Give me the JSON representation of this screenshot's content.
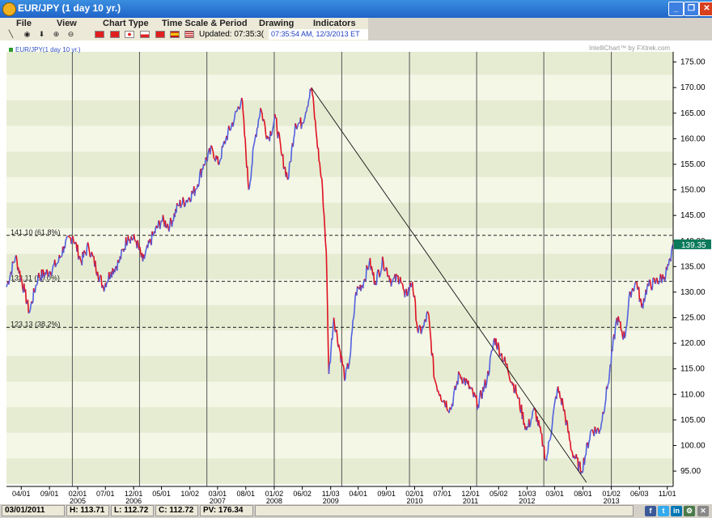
{
  "window": {
    "title": "EUR/JPY (1 day  10 yr.)"
  },
  "menu": [
    "File",
    "View",
    "Chart Type",
    "Time Scale & Period",
    "Drawing",
    "Indicators"
  ],
  "toolbar": {
    "updated_label": "Updated: 07:35:3(",
    "updated_value": "07:35:54 AM, 12/3/2013 ET",
    "tools": [
      "line-tool",
      "crosshair-tool",
      "arrow-down-tool",
      "zoom-in-tool",
      "zoom-out-tool"
    ],
    "flags": [
      "china",
      "hong-kong",
      "japan",
      "poland",
      "turkey",
      "spain",
      "usa"
    ]
  },
  "status": {
    "date": "03/01/2011",
    "high": "H: 113.71",
    "low": "L: 112.72",
    "close": "C: 112.72",
    "pv": "PV: 176.34",
    "share_icons": [
      "facebook-icon",
      "twitter-icon",
      "linkedin-icon",
      "settings-icon",
      "close-icon"
    ]
  },
  "chart_data": {
    "type": "line",
    "title": "EUR/JPY(1 day  10 yr.)",
    "watermark": "IntelliChart™ by FXtrek.com",
    "ylim": [
      92,
      177
    ],
    "y_ticks": [
      95,
      100,
      105,
      110,
      115,
      120,
      125,
      130,
      135,
      140,
      145,
      150,
      155,
      160,
      165,
      170,
      175
    ],
    "y_tick_labels": [
      "95.00",
      "100.00",
      "105.00",
      "110.00",
      "115.00",
      "120.00",
      "125.00",
      "130.00",
      "135.00",
      "140.00",
      "145.00",
      "150.00",
      "155.00",
      "160.00",
      "165.00",
      "170.00",
      "175.00"
    ],
    "xlim": [
      "2004-01-12",
      "2013-12-03"
    ],
    "x_ticks": [
      {
        "date": "2004-04-01",
        "label": "04/01"
      },
      {
        "date": "2004-09-01",
        "label": "09/01"
      },
      {
        "date": "2005-02-01",
        "label": "02/01",
        "year": "2005"
      },
      {
        "date": "2005-07-01",
        "label": "07/01"
      },
      {
        "date": "2005-12-01",
        "label": "12/01",
        "year": "2006"
      },
      {
        "date": "2006-05-01",
        "label": "05/01"
      },
      {
        "date": "2006-10-02",
        "label": "10/02"
      },
      {
        "date": "2007-03-01",
        "label": "03/01",
        "year": "2007"
      },
      {
        "date": "2007-08-01",
        "label": "08/01"
      },
      {
        "date": "2008-01-02",
        "label": "01/02",
        "year": "2008"
      },
      {
        "date": "2008-06-02",
        "label": "06/02"
      },
      {
        "date": "2008-11-03",
        "label": "11/03",
        "year": "2009"
      },
      {
        "date": "2009-04-01",
        "label": "04/01"
      },
      {
        "date": "2009-09-01",
        "label": "09/01"
      },
      {
        "date": "2010-02-01",
        "label": "02/01",
        "year": "2010"
      },
      {
        "date": "2010-07-01",
        "label": "07/01"
      },
      {
        "date": "2010-12-01",
        "label": "12/01",
        "year": "2011"
      },
      {
        "date": "2011-05-02",
        "label": "05/02"
      },
      {
        "date": "2011-10-03",
        "label": "10/03",
        "year": "2012"
      },
      {
        "date": "2012-03-01",
        "label": "03/01"
      },
      {
        "date": "2012-08-01",
        "label": "08/01"
      },
      {
        "date": "2013-01-02",
        "label": "01/02",
        "year": "2013"
      },
      {
        "date": "2013-06-03",
        "label": "06/03"
      },
      {
        "date": "2013-11-01",
        "label": "11/01"
      }
    ],
    "year_dividers": [
      "2005-01-03",
      "2006-01-02",
      "2007-01-02",
      "2008-01-02",
      "2009-01-02",
      "2010-01-04",
      "2011-01-03",
      "2012-01-02",
      "2013-01-02"
    ],
    "fib_levels": [
      {
        "value": 141.1,
        "label": "141.10 (61.8%)"
      },
      {
        "value": 132.11,
        "label": "132.11 (50.0%)"
      },
      {
        "value": 123.13,
        "label": "123.13 (38.2%)"
      }
    ],
    "trendline": [
      {
        "x": "2008-07-23",
        "y": 169.9
      },
      {
        "x": "2012-08-20",
        "y": 92.8
      }
    ],
    "last_price": {
      "value": 139.35,
      "label": "139.35"
    },
    "colors": {
      "up": "#5060e0",
      "down": "#e01020",
      "band_light": "#f4f6e6",
      "band_dark": "#e6ecd2",
      "last_price_bg": "#0a7a5a"
    },
    "series": [
      {
        "x": "2004-01-12",
        "y": 131
      },
      {
        "x": "2004-03-01",
        "y": 137
      },
      {
        "x": "2004-04-20",
        "y": 130
      },
      {
        "x": "2004-05-15",
        "y": 126
      },
      {
        "x": "2004-07-01",
        "y": 133
      },
      {
        "x": "2004-09-01",
        "y": 134
      },
      {
        "x": "2004-10-20",
        "y": 136
      },
      {
        "x": "2004-11-20",
        "y": 139
      },
      {
        "x": "2005-01-05",
        "y": 141
      },
      {
        "x": "2005-02-20",
        "y": 136
      },
      {
        "x": "2005-04-01",
        "y": 139
      },
      {
        "x": "2005-05-20",
        "y": 134
      },
      {
        "x": "2005-06-20",
        "y": 131
      },
      {
        "x": "2005-08-01",
        "y": 134
      },
      {
        "x": "2005-09-15",
        "y": 136
      },
      {
        "x": "2005-11-01",
        "y": 141
      },
      {
        "x": "2005-12-15",
        "y": 140
      },
      {
        "x": "2006-01-20",
        "y": 136
      },
      {
        "x": "2006-03-15",
        "y": 141
      },
      {
        "x": "2006-05-01",
        "y": 144
      },
      {
        "x": "2006-06-15",
        "y": 143
      },
      {
        "x": "2006-08-01",
        "y": 147
      },
      {
        "x": "2006-09-15",
        "y": 148
      },
      {
        "x": "2006-11-01",
        "y": 150
      },
      {
        "x": "2006-12-15",
        "y": 155
      },
      {
        "x": "2007-02-01",
        "y": 158
      },
      {
        "x": "2007-03-05",
        "y": 155
      },
      {
        "x": "2007-04-15",
        "y": 160
      },
      {
        "x": "2007-06-01",
        "y": 164
      },
      {
        "x": "2007-07-10",
        "y": 168
      },
      {
        "x": "2007-08-17",
        "y": 150
      },
      {
        "x": "2007-09-20",
        "y": 160
      },
      {
        "x": "2007-10-20",
        "y": 166
      },
      {
        "x": "2007-11-30",
        "y": 160
      },
      {
        "x": "2008-01-10",
        "y": 164
      },
      {
        "x": "2008-02-10",
        "y": 157
      },
      {
        "x": "2008-03-17",
        "y": 152
      },
      {
        "x": "2008-04-25",
        "y": 163
      },
      {
        "x": "2008-06-01",
        "y": 163
      },
      {
        "x": "2008-07-23",
        "y": 170
      },
      {
        "x": "2008-08-20",
        "y": 160
      },
      {
        "x": "2008-09-20",
        "y": 150
      },
      {
        "x": "2008-10-10",
        "y": 138
      },
      {
        "x": "2008-10-24",
        "y": 114
      },
      {
        "x": "2008-11-20",
        "y": 125
      },
      {
        "x": "2009-01-21",
        "y": 113
      },
      {
        "x": "2009-02-15",
        "y": 117
      },
      {
        "x": "2009-03-20",
        "y": 130
      },
      {
        "x": "2009-05-01",
        "y": 132
      },
      {
        "x": "2009-06-01",
        "y": 136
      },
      {
        "x": "2009-07-01",
        "y": 132
      },
      {
        "x": "2009-08-15",
        "y": 136
      },
      {
        "x": "2009-10-01",
        "y": 132
      },
      {
        "x": "2009-11-15",
        "y": 133
      },
      {
        "x": "2009-12-10",
        "y": 129
      },
      {
        "x": "2010-01-20",
        "y": 132
      },
      {
        "x": "2010-02-20",
        "y": 122
      },
      {
        "x": "2010-03-20",
        "y": 123
      },
      {
        "x": "2010-04-15",
        "y": 126
      },
      {
        "x": "2010-05-20",
        "y": 113
      },
      {
        "x": "2010-06-20",
        "y": 110
      },
      {
        "x": "2010-08-15",
        "y": 107
      },
      {
        "x": "2010-10-01",
        "y": 114
      },
      {
        "x": "2010-11-15",
        "y": 112
      },
      {
        "x": "2011-01-10",
        "y": 108
      },
      {
        "x": "2011-03-01",
        "y": 113
      },
      {
        "x": "2011-04-10",
        "y": 121
      },
      {
        "x": "2011-05-15",
        "y": 118
      },
      {
        "x": "2011-06-20",
        "y": 115
      },
      {
        "x": "2011-08-10",
        "y": 110
      },
      {
        "x": "2011-10-01",
        "y": 103
      },
      {
        "x": "2011-11-15",
        "y": 107
      },
      {
        "x": "2011-12-30",
        "y": 100
      },
      {
        "x": "2012-01-16",
        "y": 97
      },
      {
        "x": "2012-03-15",
        "y": 111
      },
      {
        "x": "2012-04-15",
        "y": 108
      },
      {
        "x": "2012-06-01",
        "y": 99
      },
      {
        "x": "2012-07-24",
        "y": 95
      },
      {
        "x": "2012-09-15",
        "y": 103
      },
      {
        "x": "2012-11-01",
        "y": 103
      },
      {
        "x": "2012-12-15",
        "y": 112
      },
      {
        "x": "2013-02-01",
        "y": 125
      },
      {
        "x": "2013-03-15",
        "y": 121
      },
      {
        "x": "2013-04-15",
        "y": 130
      },
      {
        "x": "2013-05-20",
        "y": 132
      },
      {
        "x": "2013-06-15",
        "y": 127
      },
      {
        "x": "2013-07-15",
        "y": 131
      },
      {
        "x": "2013-09-01",
        "y": 132
      },
      {
        "x": "2013-10-15",
        "y": 133
      },
      {
        "x": "2013-11-20",
        "y": 136
      },
      {
        "x": "2013-12-03",
        "y": 139.35
      }
    ]
  }
}
